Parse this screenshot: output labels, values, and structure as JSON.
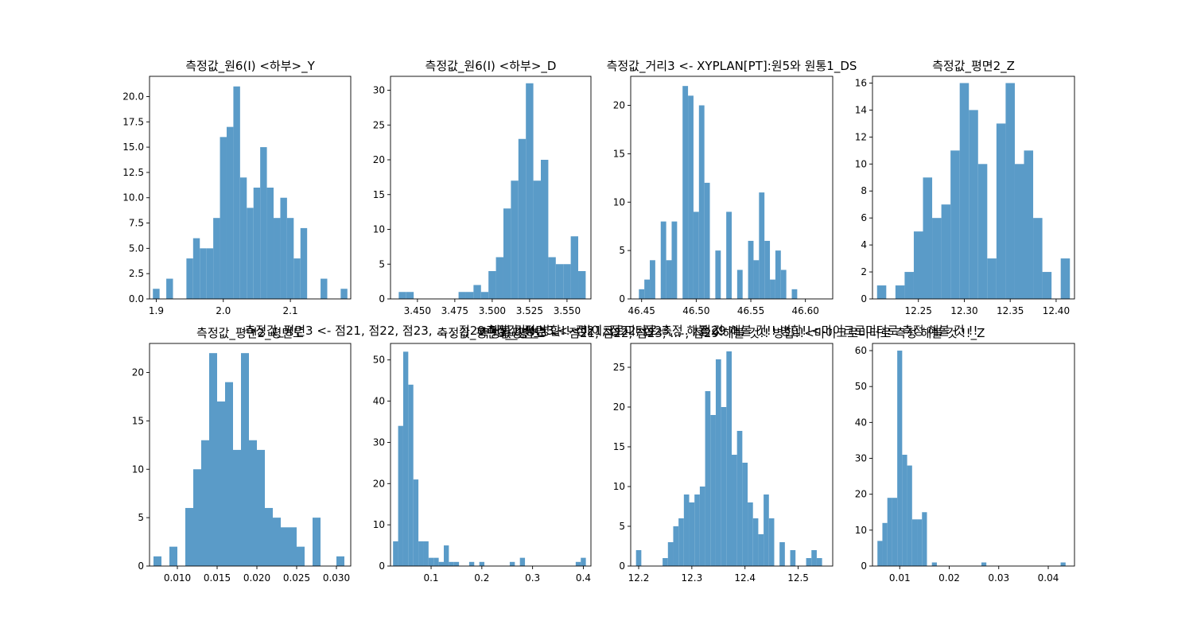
{
  "chart_data": [
    {
      "type": "histogram",
      "title": "측정값_원6(I) <하부>_Y",
      "x": [
        1.9,
        1.92,
        1.95,
        1.96,
        1.97,
        1.98,
        1.99,
        2.0,
        2.01,
        2.02,
        2.03,
        2.04,
        2.05,
        2.06,
        2.07,
        2.08,
        2.09,
        2.1,
        2.11,
        2.12,
        2.15,
        2.18
      ],
      "counts": [
        1,
        2,
        4,
        6,
        5,
        5,
        8,
        16,
        17,
        21,
        12,
        9,
        11,
        15,
        11,
        8,
        10,
        8,
        4,
        7,
        2,
        1
      ],
      "xlim": [
        1.89,
        2.19
      ],
      "ylim": [
        0,
        22
      ],
      "xticks": [
        1.9,
        2.0,
        2.1
      ],
      "xtick_labels": [
        "1.9",
        "2.0",
        "2.1"
      ],
      "yticks": [
        0,
        2.5,
        5,
        7.5,
        10,
        12.5,
        15,
        17.5,
        20
      ],
      "ytick_labels": [
        "0.0",
        "2.5",
        "5.0",
        "7.5",
        "10.0",
        "12.5",
        "15.0",
        "17.5",
        "20.0"
      ]
    },
    {
      "type": "histogram",
      "title": "측정값_원6(I) <하부>_D",
      "x": [
        3.44,
        3.445,
        3.48,
        3.485,
        3.49,
        3.495,
        3.5,
        3.505,
        3.51,
        3.515,
        3.52,
        3.525,
        3.53,
        3.535,
        3.54,
        3.545,
        3.55,
        3.555,
        3.56
      ],
      "counts": [
        1,
        1,
        1,
        1,
        2,
        1,
        4,
        6,
        13,
        17,
        23,
        31,
        17,
        20,
        6,
        5,
        5,
        9,
        4
      ],
      "xlim": [
        3.432,
        3.566
      ],
      "ylim": [
        0,
        32
      ],
      "xticks": [
        3.45,
        3.475,
        3.5,
        3.525,
        3.55
      ],
      "xtick_labels": [
        "3.450",
        "3.475",
        "3.500",
        "3.525",
        "3.550"
      ],
      "yticks": [
        0,
        5,
        10,
        15,
        20,
        25,
        30
      ],
      "ytick_labels": [
        "0",
        "5",
        "10",
        "15",
        "20",
        "25",
        "30"
      ]
    },
    {
      "type": "histogram",
      "title": "측정값_거리3 <- XYPLAN[PT]:원5와 원통1_DS",
      "x": [
        46.45,
        46.455,
        46.46,
        46.47,
        46.475,
        46.48,
        46.49,
        46.495,
        46.5,
        46.505,
        46.51,
        46.52,
        46.53,
        46.54,
        46.55,
        46.555,
        46.56,
        46.565,
        46.57,
        46.575,
        46.58,
        46.59
      ],
      "counts": [
        1,
        2,
        4,
        8,
        4,
        8,
        22,
        21,
        9,
        20,
        12,
        5,
        9,
        3,
        6,
        4,
        11,
        6,
        2,
        5,
        3,
        1
      ],
      "xlim": [
        46.44,
        46.625
      ],
      "ylim": [
        0,
        23
      ],
      "xticks": [
        46.45,
        46.5,
        46.55,
        46.6
      ],
      "xtick_labels": [
        "46.45",
        "46.50",
        "46.55",
        "46.60"
      ],
      "yticks": [
        0,
        5,
        10,
        15,
        20
      ],
      "ytick_labels": [
        "0",
        "5",
        "10",
        "15",
        "20"
      ]
    },
    {
      "type": "histogram",
      "title": "측정값_평면2_Z",
      "x": [
        12.21,
        12.23,
        12.24,
        12.25,
        12.26,
        12.27,
        12.28,
        12.29,
        12.3,
        12.31,
        12.32,
        12.33,
        12.34,
        12.35,
        12.36,
        12.37,
        12.38,
        12.39,
        12.41
      ],
      "counts": [
        1,
        1,
        2,
        5,
        9,
        6,
        7,
        11,
        16,
        14,
        10,
        3,
        13,
        16,
        10,
        11,
        6,
        2,
        3
      ],
      "xlim": [
        12.2,
        12.42
      ],
      "ylim": [
        0,
        16.5
      ],
      "xticks": [
        12.25,
        12.3,
        12.35,
        12.4
      ],
      "xtick_labels": [
        "12.25",
        "12.30",
        "12.35",
        "12.40"
      ],
      "yticks": [
        0,
        2,
        4,
        6,
        8,
        10,
        12,
        14,
        16
      ],
      "ytick_labels": [
        "0",
        "2",
        "4",
        "6",
        "8",
        "10",
        "12",
        "14",
        "16"
      ]
    },
    {
      "type": "histogram",
      "title": "측정값_평면2_평면도",
      "x": [
        0.0075,
        0.0095,
        0.0115,
        0.0125,
        0.0135,
        0.0145,
        0.0155,
        0.0165,
        0.0175,
        0.0185,
        0.0195,
        0.0205,
        0.0215,
        0.0225,
        0.0235,
        0.0245,
        0.0255,
        0.0275,
        0.0305
      ],
      "counts": [
        1,
        2,
        6,
        10,
        13,
        22,
        17,
        19,
        12,
        22,
        13,
        12,
        6,
        5,
        4,
        4,
        2,
        5,
        1
      ],
      "xlim": [
        0.0065,
        0.0318
      ],
      "ylim": [
        0,
        23
      ],
      "xticks": [
        0.01,
        0.015,
        0.02,
        0.025,
        0.03
      ],
      "xtick_labels": [
        "0.010",
        "0.015",
        "0.020",
        "0.025",
        "0.030"
      ],
      "yticks": [
        0,
        5,
        10,
        15,
        20
      ],
      "ytick_labels": [
        "0",
        "5",
        "10",
        "15",
        "20"
      ]
    },
    {
      "type": "histogram",
      "title": "측정값_평면3_평면도",
      "title_overlap": "측정값_평면3 <- 점21, 점22, 점23, ... , 점29 해볼 것!! 병합!!<마이크로미터로 측정 해볼 것 !!",
      "x": [
        0.03,
        0.04,
        0.05,
        0.06,
        0.07,
        0.08,
        0.09,
        0.1,
        0.11,
        0.12,
        0.13,
        0.14,
        0.15,
        0.18,
        0.2,
        0.26,
        0.28,
        0.39,
        0.4
      ],
      "counts": [
        6,
        34,
        52,
        44,
        21,
        6,
        6,
        2,
        2,
        1,
        5,
        1,
        1,
        1,
        1,
        1,
        2,
        1,
        2
      ],
      "xlim": [
        0.02,
        0.415
      ],
      "ylim": [
        0,
        54
      ],
      "xticks": [
        0.1,
        0.2,
        0.3,
        0.4
      ],
      "xtick_labels": [
        "0.1",
        "0.2",
        "0.3",
        "0.4"
      ],
      "yticks": [
        0,
        10,
        20,
        30,
        40,
        50
      ],
      "ytick_labels": [
        "0",
        "10",
        "20",
        "30",
        "40",
        "50"
      ]
    },
    {
      "type": "histogram",
      "title": "측정값_평면3 <- 점21, 점22, 점23, ... , 점29 해볼 것!! 병합!!<마이크로미터로 측정 해볼 것 !!_Z",
      "title_overlap": "측정값_평면3 <- 점21, 점22, 점23, ... , 점29 해볼 것!! 병합!!<마이크로미터로 측정 해볼 것 !!",
      "x": [
        12.2,
        12.25,
        12.26,
        12.27,
        12.28,
        12.29,
        12.3,
        12.31,
        12.32,
        12.33,
        12.34,
        12.35,
        12.36,
        12.37,
        12.38,
        12.39,
        12.4,
        12.41,
        12.42,
        12.43,
        12.44,
        12.45,
        12.47,
        12.49,
        12.52,
        12.53,
        12.54
      ],
      "counts": [
        2,
        1,
        3,
        5,
        6,
        9,
        8,
        9,
        10,
        22,
        19,
        26,
        20,
        27,
        14,
        17,
        13,
        8,
        6,
        4,
        9,
        6,
        3,
        2,
        1,
        2,
        1
      ],
      "xlim": [
        12.185,
        12.565
      ],
      "ylim": [
        0,
        28
      ],
      "xticks": [
        12.2,
        12.3,
        12.4,
        12.5
      ],
      "xtick_labels": [
        "12.2",
        "12.3",
        "12.4",
        "12.5"
      ],
      "yticks": [
        0,
        5,
        10,
        15,
        20,
        25
      ],
      "ytick_labels": [
        "0",
        "5",
        "10",
        "15",
        "20",
        "25"
      ]
    },
    {
      "type": "histogram",
      "title": "",
      "x": [
        0.006,
        0.007,
        0.008,
        0.009,
        0.01,
        0.011,
        0.012,
        0.013,
        0.014,
        0.015,
        0.017,
        0.027,
        0.043
      ],
      "counts": [
        7,
        12,
        19,
        19,
        60,
        31,
        28,
        13,
        13,
        15,
        1,
        1,
        1
      ],
      "xlim": [
        0.0045,
        0.0453
      ],
      "ylim": [
        0,
        62
      ],
      "xticks": [
        0.01,
        0.02,
        0.03,
        0.04
      ],
      "xtick_labels": [
        "0.01",
        "0.02",
        "0.03",
        "0.04"
      ],
      "yticks": [
        0,
        10,
        20,
        30,
        40,
        50,
        60
      ],
      "ytick_labels": [
        "0",
        "10",
        "20",
        "30",
        "40",
        "50",
        "60"
      ]
    }
  ],
  "colors": {
    "bar": "#5a9bc8",
    "axes": "#000000",
    "background": "#ffffff"
  }
}
